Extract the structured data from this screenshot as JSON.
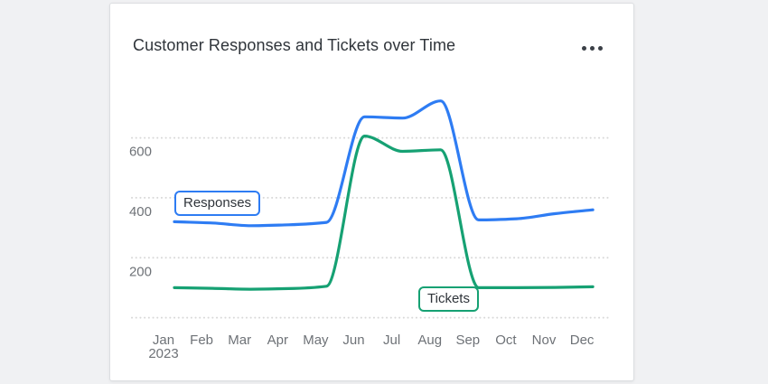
{
  "window": {
    "background_color": "#f0f1f3"
  },
  "card": {
    "background_color": "#ffffff",
    "border_color": "#dcdee1",
    "menu_icon": "ellipsis-horizontal-icon"
  },
  "chart_data": {
    "type": "line",
    "title": "Customer Responses and Tickets over Time",
    "x": [
      "Jan",
      "Feb",
      "Mar",
      "Apr",
      "May",
      "Jun",
      "Jul",
      "Aug",
      "Sep",
      "Oct",
      "Nov",
      "Dec"
    ],
    "year_label": "2023",
    "series": [
      {
        "name": "Responses",
        "color": "#2e7cf3",
        "values": [
          320,
          316,
          307,
          310,
          318,
          670,
          666,
          723,
          326,
          330,
          347,
          360
        ]
      },
      {
        "name": "Tickets",
        "color": "#16a173",
        "values": [
          100,
          98,
          95,
          97,
          105,
          606,
          555,
          560,
          100,
          100,
          101,
          103
        ]
      }
    ],
    "ylim": [
      0,
      800
    ],
    "y_ticks": [
      200,
      400,
      600
    ],
    "gridline_values": [
      0,
      200,
      400,
      600
    ],
    "grid_style": "dotted",
    "legend": "inline-label-boxes",
    "colors": {
      "grid": "#d8d8d8",
      "axis_text": "#6e7277",
      "title_text": "#2f343a"
    }
  }
}
